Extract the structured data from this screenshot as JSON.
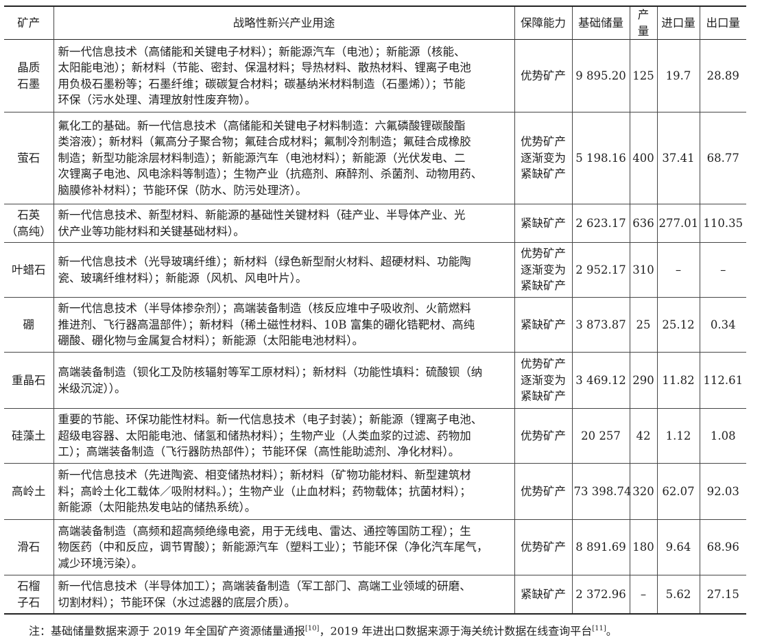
{
  "headers": [
    "矿产",
    "战略性新兴产业用途",
    "保障能力",
    "基础储量",
    "产量",
    "进口量",
    "出口量"
  ],
  "rows": [
    {
      "mineral": [
        "晶质",
        "石墨"
      ],
      "use": [
        "新一代信息技术（高储能和关键电子材料）；新能源汽车（电池）；新能源（核能、",
        "太阳能电池）；新材料（节能、密封、保温材料；导热材料、散热材料、锂离子电池",
        "用负极石墨粉等；石墨纤维；碳碳复合材料；碳基纳米材料制造（石墨烯））；节能",
        "环保（污水处理、清理放射性废弃物）。"
      ],
      "capacity": [
        "优势矿产"
      ],
      "reserve": "9 895.20",
      "output": "125",
      "import": "19.7",
      "export": "28.89"
    },
    {
      "mineral": [
        "萤石"
      ],
      "use": [
        "氟化工的基础。新一代信息技术（高储能和关键电子材料制造：六氟磷酸锂碳酸酯",
        "类溶液）；新材料（氟高分子聚合物；氟硅合成材料；氟制冷剂制造；氟硅合成橡胶",
        "制造；新型功能涂层材料制造）；新能源汽车（电池材料）；新能源（光伏发电、二",
        "次锂离子电池、风电涂料等制造）；生物产业（抗癌剂、麻醉剂、杀菌剂、动物用药、",
        "脑膜修补材料）；节能环保（防水、防污处理济）。"
      ],
      "capacity": [
        "优势矿产",
        "逐渐变为",
        "紧缺矿产"
      ],
      "reserve": "5 198.16",
      "output": "400",
      "import": "37.41",
      "export": "68.77"
    },
    {
      "mineral": [
        "石英",
        "（高纯）"
      ],
      "use": [
        "新一代信息技术、新型材料、新能源的基础性关键材料（硅产业、半导体产业、光",
        "伏产业等功能材料和关键基础材料）。"
      ],
      "capacity": [
        "紧缺矿产"
      ],
      "reserve": "2 623.17",
      "output": "636",
      "import": "277.01",
      "export": "110.35"
    },
    {
      "mineral": [
        "叶蜡石"
      ],
      "use": [
        "新一代信息技术（光导玻璃纤维）；新材料（绿色新型耐火材料、超硬材料、功能陶",
        "瓷、玻璃纤维材料）；新能源（风机、风电叶片）。"
      ],
      "capacity": [
        "优势矿产",
        "逐渐变为",
        "紧缺矿产"
      ],
      "reserve": "2 952.17",
      "output": "310",
      "import": "–",
      "export": "–"
    },
    {
      "mineral": [
        "硼"
      ],
      "use": [
        "新一代信息技术（半导体掺杂剂）；高端装备制造（核反应堆中子吸收剂、火箭燃料",
        "推进剂、飞行器高温部件）；新材料（稀土磁性材料、10B 富集的硼化锆靶材、高纯",
        "硼酸、硼化物与金属复合材料）；新能源（太阳能电池材料）。"
      ],
      "capacity": [
        "紧缺矿产"
      ],
      "reserve": "3 873.87",
      "output": "25",
      "import": "25.12",
      "export": "0.34"
    },
    {
      "mineral": [
        "重晶石"
      ],
      "use": [
        "高端装备制造（钡化工及防核辐射等军工原材料）；新材料（功能性填料：硫酸钡（纳",
        "米级沉淀））。"
      ],
      "capacity": [
        "优势矿产",
        "逐渐变为",
        "紧缺矿产"
      ],
      "reserve": "3 469.12",
      "output": "290",
      "import": "11.82",
      "export": "112.61"
    },
    {
      "mineral": [
        "硅藻土"
      ],
      "use": [
        "重要的节能、环保功能性材料。新一代信息技术（电子封装）；新能源（锂离子电池、",
        "超级电容器、太阳能电池、储氢和储热材料）；生物产业（人类血浆的过滤、药物加",
        "工）；高端装备制造（飞行器防热部件）；节能环保（高性能助滤剂、净化材料）。"
      ],
      "capacity": [
        "优势矿产"
      ],
      "reserve": "20 257",
      "output": "42",
      "import": "1.12",
      "export": "1.08"
    },
    {
      "mineral": [
        "高岭土"
      ],
      "use": [
        "新一代信息技术（先进陶瓷、相变储热材料）；新材料（矿物功能材料、新型建筑材",
        "料；高岭土化工载体／吸附材料。）；生物产业（止血材料；药物载体；抗菌材料）；",
        "新能源（太阳能热发电站的储热系统）。"
      ],
      "capacity": [
        "优势矿产"
      ],
      "reserve": "73 398.74",
      "output": "320",
      "import": "62.07",
      "export": "92.03"
    },
    {
      "mineral": [
        "滑石"
      ],
      "use": [
        "高端装备制造（高频和超高频绝缘电瓷，用于无线电、雷达、通控等国防工程）；生",
        "物医药（中和反应，调节胃酸）；新能源汽车（塑料工业）；节能环保（净化汽车尾气，",
        "减少环境污染）。"
      ],
      "capacity": [
        "优势矿产"
      ],
      "reserve": "8 891.69",
      "output": "180",
      "import": "9.64",
      "export": "68.96"
    },
    {
      "mineral": [
        "石榴",
        "子石"
      ],
      "use": [
        "新一代信息技术（半导体加工）；高端装备制造（军工部门、高端工业领域的研磨、",
        "切割材料）；节能环保（水过滤器的底层介质）。"
      ],
      "capacity": [
        "紧缺矿产"
      ],
      "reserve": "2 372.96",
      "output": "–",
      "import": "5.62",
      "export": "27.15"
    }
  ],
  "note": {
    "prefix": "注：基础储量数据来源于 2019 年全国矿产资源储量通报",
    "ref1": "[10]",
    "middle": "，2019 年进出口数据来源于海关统计数据在线查询平台",
    "ref2": "[11]",
    "suffix": "。"
  }
}
